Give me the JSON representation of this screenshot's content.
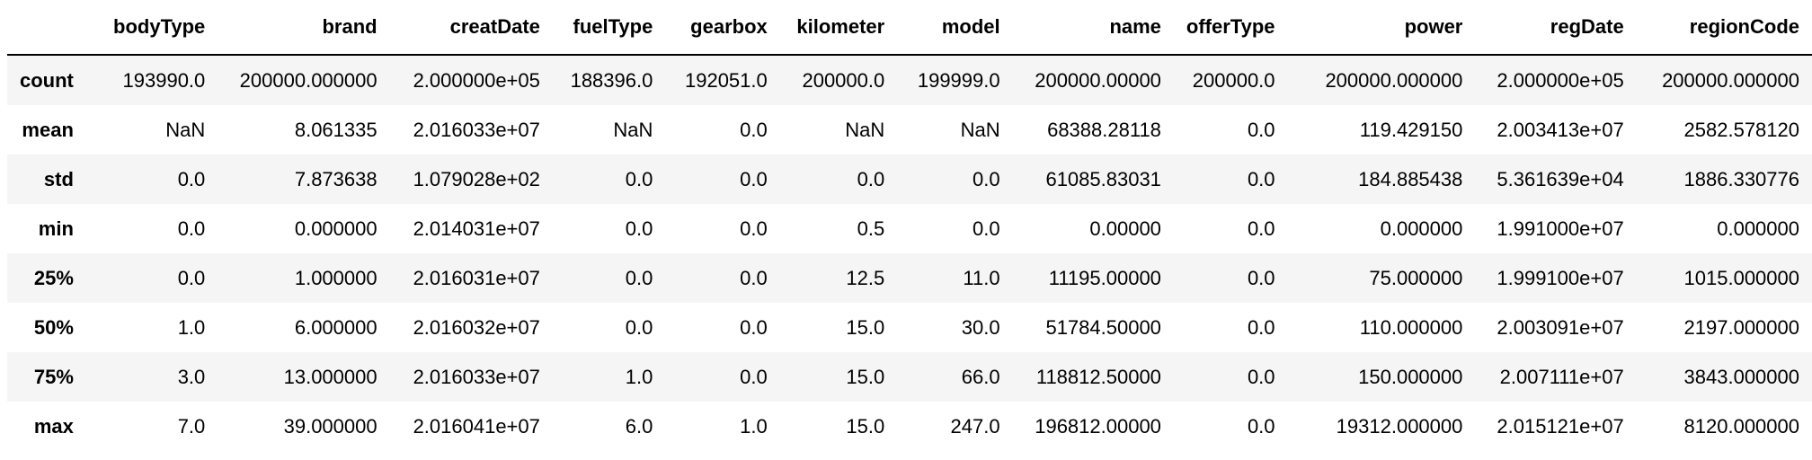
{
  "table": {
    "index_header": "",
    "columns": [
      "bodyType",
      "brand",
      "creatDate",
      "fuelType",
      "gearbox",
      "kilometer",
      "model",
      "name",
      "offerType",
      "power",
      "regDate",
      "regionCode"
    ],
    "rows": [
      {
        "label": "count",
        "cells": [
          "193990.0",
          "200000.000000",
          "2.000000e+05",
          "188396.0",
          "192051.0",
          "200000.0",
          "199999.0",
          "200000.00000",
          "200000.0",
          "200000.000000",
          "2.000000e+05",
          "200000.000000"
        ]
      },
      {
        "label": "mean",
        "cells": [
          "NaN",
          "8.061335",
          "2.016033e+07",
          "NaN",
          "0.0",
          "NaN",
          "NaN",
          "68388.28118",
          "0.0",
          "119.429150",
          "2.003413e+07",
          "2582.578120"
        ]
      },
      {
        "label": "std",
        "cells": [
          "0.0",
          "7.873638",
          "1.079028e+02",
          "0.0",
          "0.0",
          "0.0",
          "0.0",
          "61085.83031",
          "0.0",
          "184.885438",
          "5.361639e+04",
          "1886.330776"
        ]
      },
      {
        "label": "min",
        "cells": [
          "0.0",
          "0.000000",
          "2.014031e+07",
          "0.0",
          "0.0",
          "0.5",
          "0.0",
          "0.00000",
          "0.0",
          "0.000000",
          "1.991000e+07",
          "0.000000"
        ]
      },
      {
        "label": "25%",
        "cells": [
          "0.0",
          "1.000000",
          "2.016031e+07",
          "0.0",
          "0.0",
          "12.5",
          "11.0",
          "11195.00000",
          "0.0",
          "75.000000",
          "1.999100e+07",
          "1015.000000"
        ]
      },
      {
        "label": "50%",
        "cells": [
          "1.0",
          "6.000000",
          "2.016032e+07",
          "0.0",
          "0.0",
          "15.0",
          "30.0",
          "51784.50000",
          "0.0",
          "110.000000",
          "2.003091e+07",
          "2197.000000"
        ]
      },
      {
        "label": "75%",
        "cells": [
          "3.0",
          "13.000000",
          "2.016033e+07",
          "1.0",
          "0.0",
          "15.0",
          "66.0",
          "118812.50000",
          "0.0",
          "150.000000",
          "2.007111e+07",
          "3843.000000"
        ]
      },
      {
        "label": "max",
        "cells": [
          "7.0",
          "39.000000",
          "2.016041e+07",
          "6.0",
          "1.0",
          "15.0",
          "247.0",
          "196812.00000",
          "0.0",
          "19312.000000",
          "2.015121e+07",
          "8120.000000"
        ]
      }
    ]
  },
  "colors": {
    "text": "#000000",
    "row_stripe": "#f5f5f5",
    "header_rule": "#000000"
  }
}
